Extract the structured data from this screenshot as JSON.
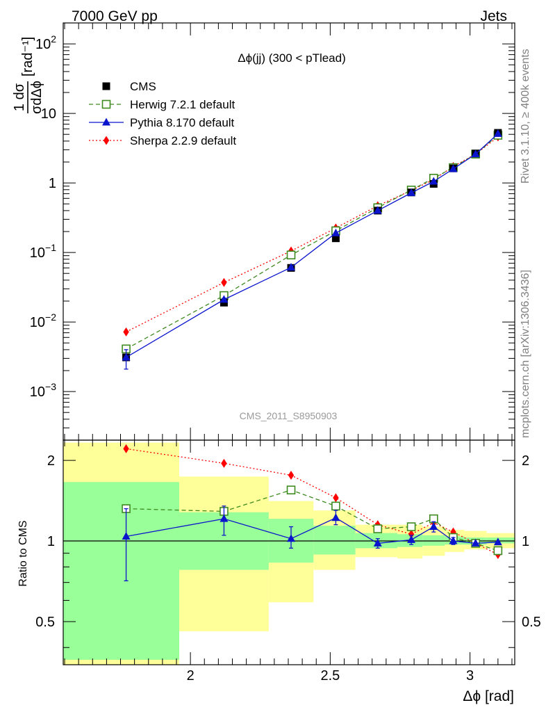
{
  "header": {
    "energy_label": "7000 GeV pp",
    "category_label": "Jets"
  },
  "side": {
    "rivet_label": "Rivet 3.1.10, ≥ 400k events",
    "source_label": "mcplots.cern.ch [arXiv:1306.3436]"
  },
  "watermark": "CMS_2011_S8950903",
  "colors": {
    "cms": "#000000",
    "herwig": "#3d8a1e",
    "pythia": "#0a14cc",
    "sherpa": "#ff0000",
    "band_inner": "#99ff99",
    "band_outer": "#ffff99"
  },
  "chart_data": [
    {
      "type": "scatter",
      "panel": "main",
      "title": "Δϕ(jj) (300 < pTlead)",
      "ylabel": "1/σ dσ/dΔϕ [rad⁻¹]",
      "ylabel_parts": {
        "numerator": "1 dσ",
        "denominator": "σdΔϕ",
        "unit": "[rad⁻¹]"
      },
      "yscale": "log",
      "ylim": [
        0.0002,
        200
      ],
      "xlim": [
        1.545,
        3.16
      ],
      "yticks": [
        {
          "value": 0.001,
          "base": "10",
          "exp": "−3"
        },
        {
          "value": 0.01,
          "base": "10",
          "exp": "−2"
        },
        {
          "value": 0.1,
          "base": "10",
          "exp": "−1"
        },
        {
          "value": 1,
          "base": "1",
          "exp": ""
        },
        {
          "value": 10,
          "base": "10",
          "exp": ""
        },
        {
          "value": 100,
          "base": "10",
          "exp": "2"
        }
      ],
      "legend_position": "top-left",
      "x": [
        1.77,
        2.12,
        2.36,
        2.52,
        2.67,
        2.79,
        2.87,
        2.94,
        3.02,
        3.1
      ],
      "series": [
        {
          "name": "CMS",
          "values": [
            0.0031,
            0.019,
            0.06,
            0.16,
            0.4,
            0.73,
            0.97,
            1.62,
            2.65,
            5.25
          ]
        },
        {
          "name": "Herwig 7.2.1 default",
          "values": [
            0.0041,
            0.024,
            0.092,
            0.205,
            0.44,
            0.79,
            1.17,
            1.66,
            2.6,
            4.85
          ]
        },
        {
          "name": "Pythia 8.170 default",
          "values": [
            0.0031,
            0.021,
            0.061,
            0.19,
            0.4,
            0.72,
            1.05,
            1.59,
            2.6,
            5.1
          ]
        },
        {
          "name": "Sherpa 2.2.9 default",
          "values": [
            0.0072,
            0.037,
            0.105,
            0.225,
            0.47,
            0.78,
            1.12,
            1.72,
            2.6,
            4.6
          ]
        }
      ],
      "error_low": {
        "Pythia 8.170 default": [
          0.001,
          0.001,
          0,
          0,
          0,
          0,
          0,
          0,
          0,
          0
        ]
      },
      "error_high": {
        "Pythia 8.170 default": [
          0.0009,
          0.001,
          0,
          0,
          0,
          0,
          0,
          0,
          0,
          0
        ]
      }
    },
    {
      "type": "scatter",
      "panel": "ratio",
      "ylabel": "Ratio to CMS",
      "xlabel": "Δϕ [rad]",
      "yscale": "log",
      "ylim": [
        0.345,
        2.38
      ],
      "xlim": [
        1.545,
        3.16
      ],
      "yticks": [
        {
          "value": 0.5,
          "label": "0.5"
        },
        {
          "value": 1,
          "label": "1"
        },
        {
          "value": 2,
          "label": "2"
        }
      ],
      "xticks": [
        {
          "value": 2,
          "label": "2"
        },
        {
          "value": 2.5,
          "label": "2.5"
        },
        {
          "value": 3,
          "label": "3"
        }
      ],
      "reference_line": 1,
      "x": [
        1.77,
        2.12,
        2.36,
        2.52,
        2.67,
        2.79,
        2.87,
        2.94,
        3.02,
        3.1
      ],
      "series": [
        {
          "name": "Herwig 7.2.1 default",
          "values": [
            1.32,
            1.29,
            1.55,
            1.35,
            1.11,
            1.13,
            1.21,
            1.03,
            0.98,
            0.92
          ]
        },
        {
          "name": "Pythia 8.170 default",
          "values": [
            1.04,
            1.21,
            1.02,
            1.22,
            0.98,
            1.01,
            1.13,
            1.0,
            0.98,
            0.99
          ]
        },
        {
          "name": "Sherpa 2.2.9 default",
          "values": [
            2.21,
            1.95,
            1.76,
            1.45,
            1.15,
            1.06,
            1.17,
            1.08,
            0.98,
            0.89
          ]
        }
      ],
      "error_low": {
        "Pythia 8.170 default": [
          0.33,
          0.16,
          0.08,
          0.07,
          0.04,
          0.04,
          0.05,
          0.03,
          0,
          0
        ]
      },
      "error_high": {
        "Pythia 8.170 default": [
          0.28,
          0.14,
          0.11,
          0.08,
          0.04,
          0.04,
          0.05,
          0.03,
          0,
          0
        ]
      },
      "bands": [
        {
          "x0": 1.545,
          "x1": 1.96,
          "inner": [
            0.36,
            1.66
          ],
          "outer": [
            0.345,
            2.33
          ]
        },
        {
          "x0": 1.96,
          "x1": 2.28,
          "inner": [
            0.78,
            1.28
          ],
          "outer": [
            0.46,
            1.74
          ]
        },
        {
          "x0": 2.28,
          "x1": 2.44,
          "inner": [
            0.83,
            1.21
          ],
          "outer": [
            0.59,
            1.41
          ]
        },
        {
          "x0": 2.44,
          "x1": 2.59,
          "inner": [
            0.89,
            1.14
          ],
          "outer": [
            0.78,
            1.3
          ]
        },
        {
          "x0": 2.59,
          "x1": 2.74,
          "inner": [
            0.94,
            1.07
          ],
          "outer": [
            0.87,
            1.15
          ]
        },
        {
          "x0": 2.74,
          "x1": 2.83,
          "inner": [
            0.95,
            1.06
          ],
          "outer": [
            0.86,
            1.15
          ]
        },
        {
          "x0": 2.83,
          "x1": 2.91,
          "inner": [
            0.96,
            1.05
          ],
          "outer": [
            0.88,
            1.13
          ]
        },
        {
          "x0": 2.91,
          "x1": 2.98,
          "inner": [
            0.97,
            1.04
          ],
          "outer": [
            0.91,
            1.1
          ]
        },
        {
          "x0": 2.98,
          "x1": 3.06,
          "inner": [
            0.97,
            1.03
          ],
          "outer": [
            0.93,
            1.09
          ]
        },
        {
          "x0": 3.06,
          "x1": 3.16,
          "inner": [
            0.98,
            1.03
          ],
          "outer": [
            0.94,
            1.07
          ]
        }
      ]
    }
  ]
}
